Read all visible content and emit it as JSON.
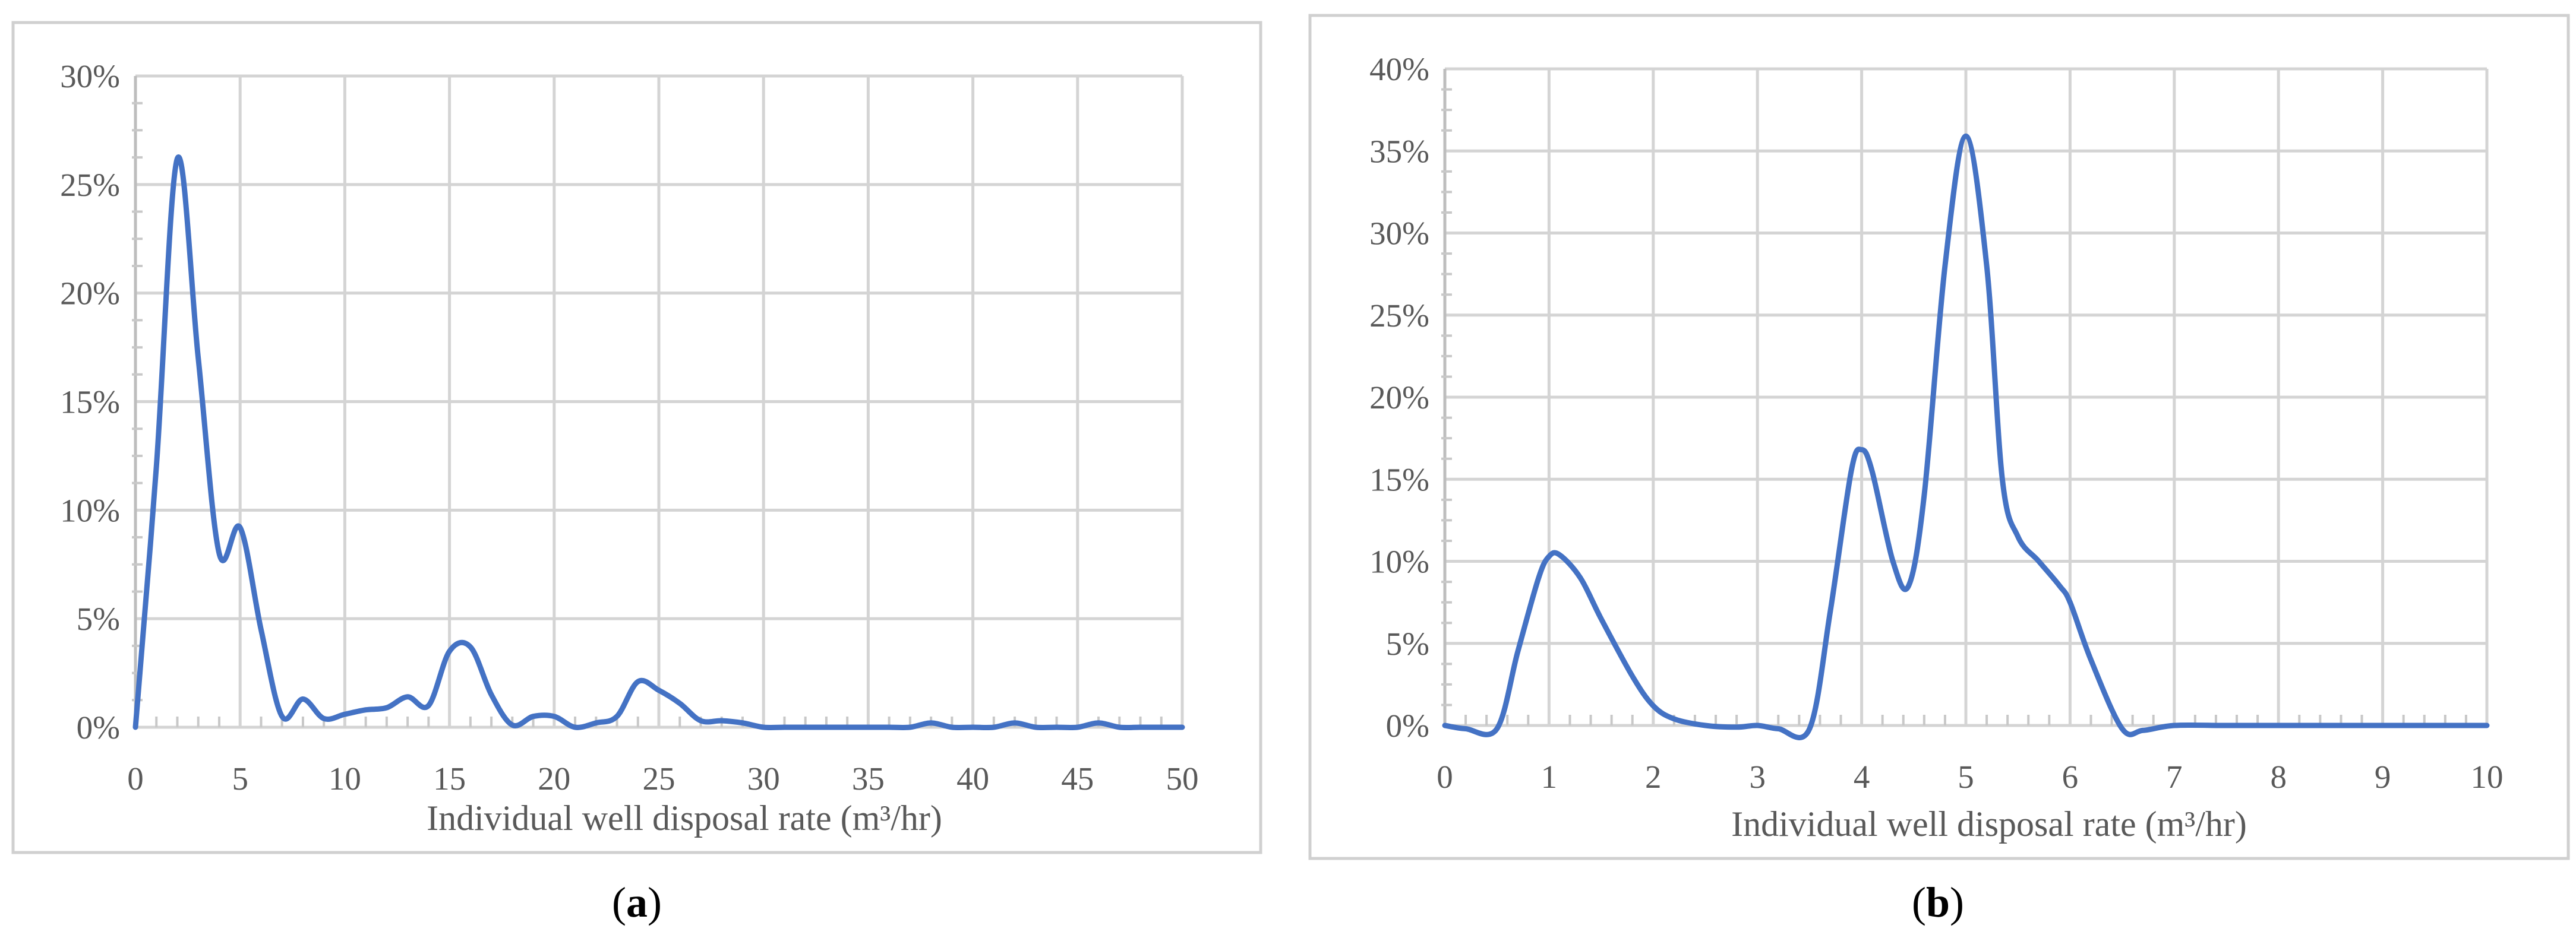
{
  "chart_data": [
    {
      "type": "line",
      "panel_label": "a",
      "xlabel": "Individual well disposal rate (m³/hr)",
      "ylabel": "",
      "xlim": [
        0,
        50
      ],
      "ylim": [
        0,
        0.3
      ],
      "x_ticks": [
        0,
        5,
        10,
        15,
        20,
        25,
        30,
        35,
        40,
        45,
        50
      ],
      "x_tick_labels": [
        "0",
        "5",
        "10",
        "15",
        "20",
        "25",
        "30",
        "35",
        "40",
        "45",
        "50"
      ],
      "y_ticks": [
        0,
        0.05,
        0.1,
        0.15,
        0.2,
        0.25,
        0.3
      ],
      "y_tick_labels": [
        "0%",
        "5%",
        "10%",
        "15%",
        "20%",
        "25%",
        "30%"
      ],
      "grid": true,
      "legend": "none",
      "color": "#4472c4",
      "series": [
        {
          "x": [
            0,
            1,
            2,
            3,
            4,
            5,
            6,
            7,
            8,
            9,
            10,
            11,
            12,
            13,
            14,
            15,
            16,
            17,
            18,
            19,
            20,
            21,
            22,
            23,
            24,
            25,
            26,
            27,
            28,
            29,
            30,
            31,
            32,
            33,
            34,
            35,
            36,
            37,
            38,
            39,
            40,
            41,
            42,
            43,
            44,
            45,
            46,
            47,
            48,
            49,
            50
          ],
          "y": [
            0.0,
            0.12,
            0.262,
            0.17,
            0.08,
            0.092,
            0.045,
            0.005,
            0.013,
            0.004,
            0.006,
            0.008,
            0.009,
            0.014,
            0.01,
            0.035,
            0.037,
            0.015,
            0.001,
            0.005,
            0.005,
            0.0,
            0.002,
            0.005,
            0.021,
            0.017,
            0.011,
            0.003,
            0.003,
            0.002,
            0.0,
            0.0,
            0.0,
            0.0,
            0.0,
            0.0,
            0.0,
            0.0,
            0.002,
            0.0,
            0.0,
            0.0,
            0.002,
            0.0,
            0.0,
            0.0,
            0.002,
            0.0,
            0.0,
            0.0,
            0.0
          ]
        }
      ]
    },
    {
      "type": "line",
      "panel_label": "b",
      "xlabel": "Individual well disposal rate (m³/hr)",
      "ylabel": "",
      "xlim": [
        0,
        10
      ],
      "ylim": [
        0,
        0.4
      ],
      "x_ticks": [
        0,
        1,
        2,
        3,
        4,
        5,
        6,
        7,
        8,
        9,
        10
      ],
      "x_tick_labels": [
        "0",
        "1",
        "2",
        "3",
        "4",
        "5",
        "6",
        "7",
        "8",
        "9",
        "10"
      ],
      "y_ticks": [
        0,
        0.05,
        0.1,
        0.15,
        0.2,
        0.25,
        0.3,
        0.35,
        0.4
      ],
      "y_tick_labels": [
        "0%",
        "5%",
        "10%",
        "15%",
        "20%",
        "25%",
        "30%",
        "35%",
        "40%"
      ],
      "grid": true,
      "legend": "none",
      "color": "#4472c4",
      "series": [
        {
          "x": [
            0.0,
            0.2,
            0.5,
            0.7,
            0.9,
            1.0,
            1.1,
            1.3,
            1.5,
            1.8,
            2.0,
            2.2,
            2.5,
            2.8,
            3.0,
            3.2,
            3.5,
            3.7,
            3.9,
            4.0,
            4.1,
            4.3,
            4.45,
            4.6,
            4.8,
            5.0,
            5.2,
            5.35,
            5.5,
            5.7,
            5.9,
            6.0,
            6.2,
            6.5,
            6.7,
            7.0,
            7.5,
            8.0,
            8.5,
            9.0,
            9.5,
            10.0
          ],
          "y": [
            0.0,
            -0.002,
            -0.002,
            0.045,
            0.09,
            0.103,
            0.104,
            0.09,
            0.065,
            0.03,
            0.012,
            0.004,
            0.0,
            -0.001,
            0.0,
            -0.002,
            -0.002,
            0.07,
            0.155,
            0.168,
            0.155,
            0.1,
            0.085,
            0.14,
            0.28,
            0.359,
            0.28,
            0.15,
            0.115,
            0.1,
            0.085,
            0.075,
            0.04,
            -0.002,
            -0.003,
            0.0,
            0.0,
            0.0,
            0.0,
            0.0,
            0.0,
            0.0
          ]
        }
      ]
    }
  ],
  "captions": {
    "a": {
      "open": "(",
      "letter": "a",
      "close": ")"
    },
    "b": {
      "open": "(",
      "letter": "b",
      "close": ")"
    }
  }
}
